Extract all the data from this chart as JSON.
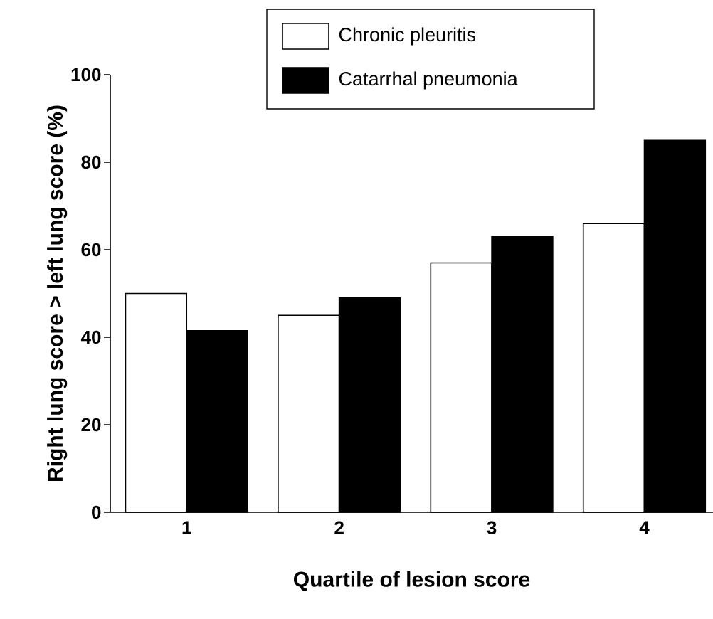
{
  "chart_data": {
    "type": "bar",
    "xlabel": "Quartile of lesion score",
    "ylabel": "Right lung score > left lung score (%)",
    "categories": [
      "1",
      "2",
      "3",
      "4"
    ],
    "series": [
      {
        "name": "Chronic pleuritis",
        "color": "#ffffff",
        "values": [
          50,
          45,
          57,
          66
        ]
      },
      {
        "name": "Catarrhal pneumonia",
        "color": "#000000",
        "values": [
          41.5,
          49,
          63,
          85
        ]
      }
    ],
    "ylim": [
      0,
      100
    ],
    "yticks": [
      0,
      20,
      40,
      60,
      80,
      100
    ],
    "legend": "top",
    "grid": false
  }
}
